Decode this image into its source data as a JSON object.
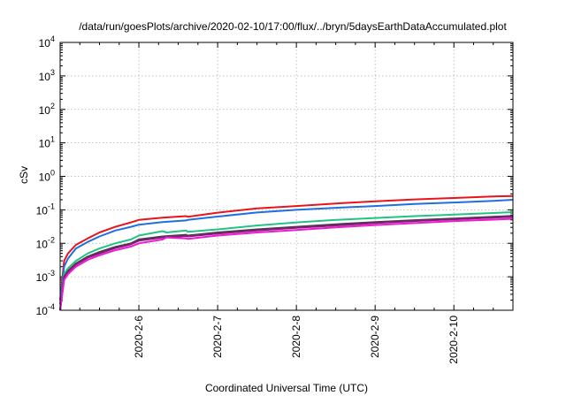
{
  "chart_data": {
    "type": "line",
    "title": "/data/run/goesPlots/archive/2020-02-10/17:00/flux/../bryn/5daysEarthDataAccumulated.plot",
    "xlabel": "Coordinated Universal Time (UTC)",
    "ylabel": "cSv",
    "x_ticks": [
      "2020-2-6",
      "2020-2-7",
      "2020-2-8",
      "2020-2-9",
      "2020-2-10"
    ],
    "x_range_days": [
      5.0,
      10.75
    ],
    "y_scale": "log",
    "ylim": [
      0.0001,
      10000
    ],
    "y_ticks": [
      {
        "base": "10",
        "exp": "-4"
      },
      {
        "base": "10",
        "exp": "-3"
      },
      {
        "base": "10",
        "exp": "-2"
      },
      {
        "base": "10",
        "exp": "-1"
      },
      {
        "base": "10",
        "exp": "0"
      },
      {
        "base": "10",
        "exp": "1"
      },
      {
        "base": "10",
        "exp": "2"
      },
      {
        "base": "10",
        "exp": "3"
      },
      {
        "base": "10",
        "exp": "4"
      }
    ],
    "grid": true,
    "legend": "none",
    "series": [
      {
        "color": "#e8141c",
        "x": [
          5.0,
          5.05,
          5.1,
          5.2,
          5.35,
          5.5,
          5.7,
          5.9,
          6.0,
          6.3,
          6.6,
          6.62,
          7.0,
          7.5,
          8.0,
          8.5,
          9.0,
          9.5,
          10.0,
          10.5,
          10.75
        ],
        "y": [
          0.0002,
          0.003,
          0.005,
          0.009,
          0.014,
          0.021,
          0.031,
          0.042,
          0.05,
          0.058,
          0.065,
          0.062,
          0.082,
          0.11,
          0.13,
          0.155,
          0.18,
          0.205,
          0.225,
          0.25,
          0.26
        ]
      },
      {
        "color": "#1f6fe0",
        "x": [
          5.0,
          5.05,
          5.1,
          5.2,
          5.35,
          5.5,
          5.7,
          5.9,
          6.0,
          6.3,
          6.6,
          6.62,
          7.0,
          7.5,
          8.0,
          8.5,
          9.0,
          9.5,
          10.0,
          10.5,
          10.75
        ],
        "y": [
          0.00015,
          0.002,
          0.0035,
          0.007,
          0.011,
          0.016,
          0.024,
          0.031,
          0.036,
          0.043,
          0.048,
          0.05,
          0.063,
          0.083,
          0.1,
          0.115,
          0.13,
          0.15,
          0.165,
          0.185,
          0.2
        ]
      },
      {
        "color": "#22c285",
        "x": [
          5.0,
          5.05,
          5.1,
          5.2,
          5.35,
          5.5,
          5.7,
          5.9,
          6.0,
          6.3,
          6.35,
          6.6,
          6.62,
          7.0,
          7.5,
          8.0,
          8.5,
          9.0,
          9.5,
          10.0,
          10.5,
          10.75
        ],
        "y": [
          0.0001,
          0.0012,
          0.0018,
          0.003,
          0.005,
          0.007,
          0.01,
          0.013,
          0.017,
          0.023,
          0.021,
          0.024,
          0.022,
          0.026,
          0.034,
          0.042,
          0.05,
          0.057,
          0.065,
          0.072,
          0.08,
          0.085
        ]
      },
      {
        "color": "#404040",
        "x": [
          5.0,
          5.05,
          5.1,
          5.2,
          5.35,
          5.5,
          5.7,
          5.9,
          6.0,
          6.3,
          6.6,
          6.62,
          7.0,
          7.5,
          8.0,
          8.5,
          9.0,
          9.5,
          10.0,
          10.5,
          10.75
        ],
        "y": [
          0.0001,
          0.001,
          0.0015,
          0.0025,
          0.004,
          0.0055,
          0.0078,
          0.01,
          0.013,
          0.016,
          0.018,
          0.017,
          0.021,
          0.026,
          0.031,
          0.037,
          0.043,
          0.049,
          0.055,
          0.062,
          0.066
        ]
      },
      {
        "color": "#8a1a7c",
        "x": [
          5.0,
          5.05,
          5.1,
          5.2,
          5.35,
          5.5,
          5.7,
          5.9,
          6.0,
          6.3,
          6.6,
          6.62,
          7.0,
          7.5,
          8.0,
          8.5,
          9.0,
          9.5,
          10.0,
          10.5,
          10.75
        ],
        "y": [
          0.0001,
          0.0009,
          0.0014,
          0.0023,
          0.0037,
          0.005,
          0.0072,
          0.0093,
          0.012,
          0.015,
          0.0165,
          0.016,
          0.0195,
          0.024,
          0.029,
          0.034,
          0.04,
          0.046,
          0.052,
          0.058,
          0.062
        ]
      },
      {
        "color": "#ec1ad2",
        "x": [
          5.0,
          5.05,
          5.1,
          5.2,
          5.35,
          5.5,
          5.7,
          5.9,
          6.0,
          6.3,
          6.35,
          6.6,
          6.62,
          7.0,
          7.5,
          8.0,
          8.5,
          9.0,
          9.5,
          10.0,
          10.5,
          10.75
        ],
        "y": [
          0.0001,
          0.0008,
          0.0012,
          0.002,
          0.0032,
          0.0044,
          0.0062,
          0.008,
          0.01,
          0.013,
          0.015,
          0.014,
          0.0135,
          0.017,
          0.021,
          0.025,
          0.03,
          0.035,
          0.04,
          0.046,
          0.051,
          0.054
        ]
      }
    ]
  }
}
